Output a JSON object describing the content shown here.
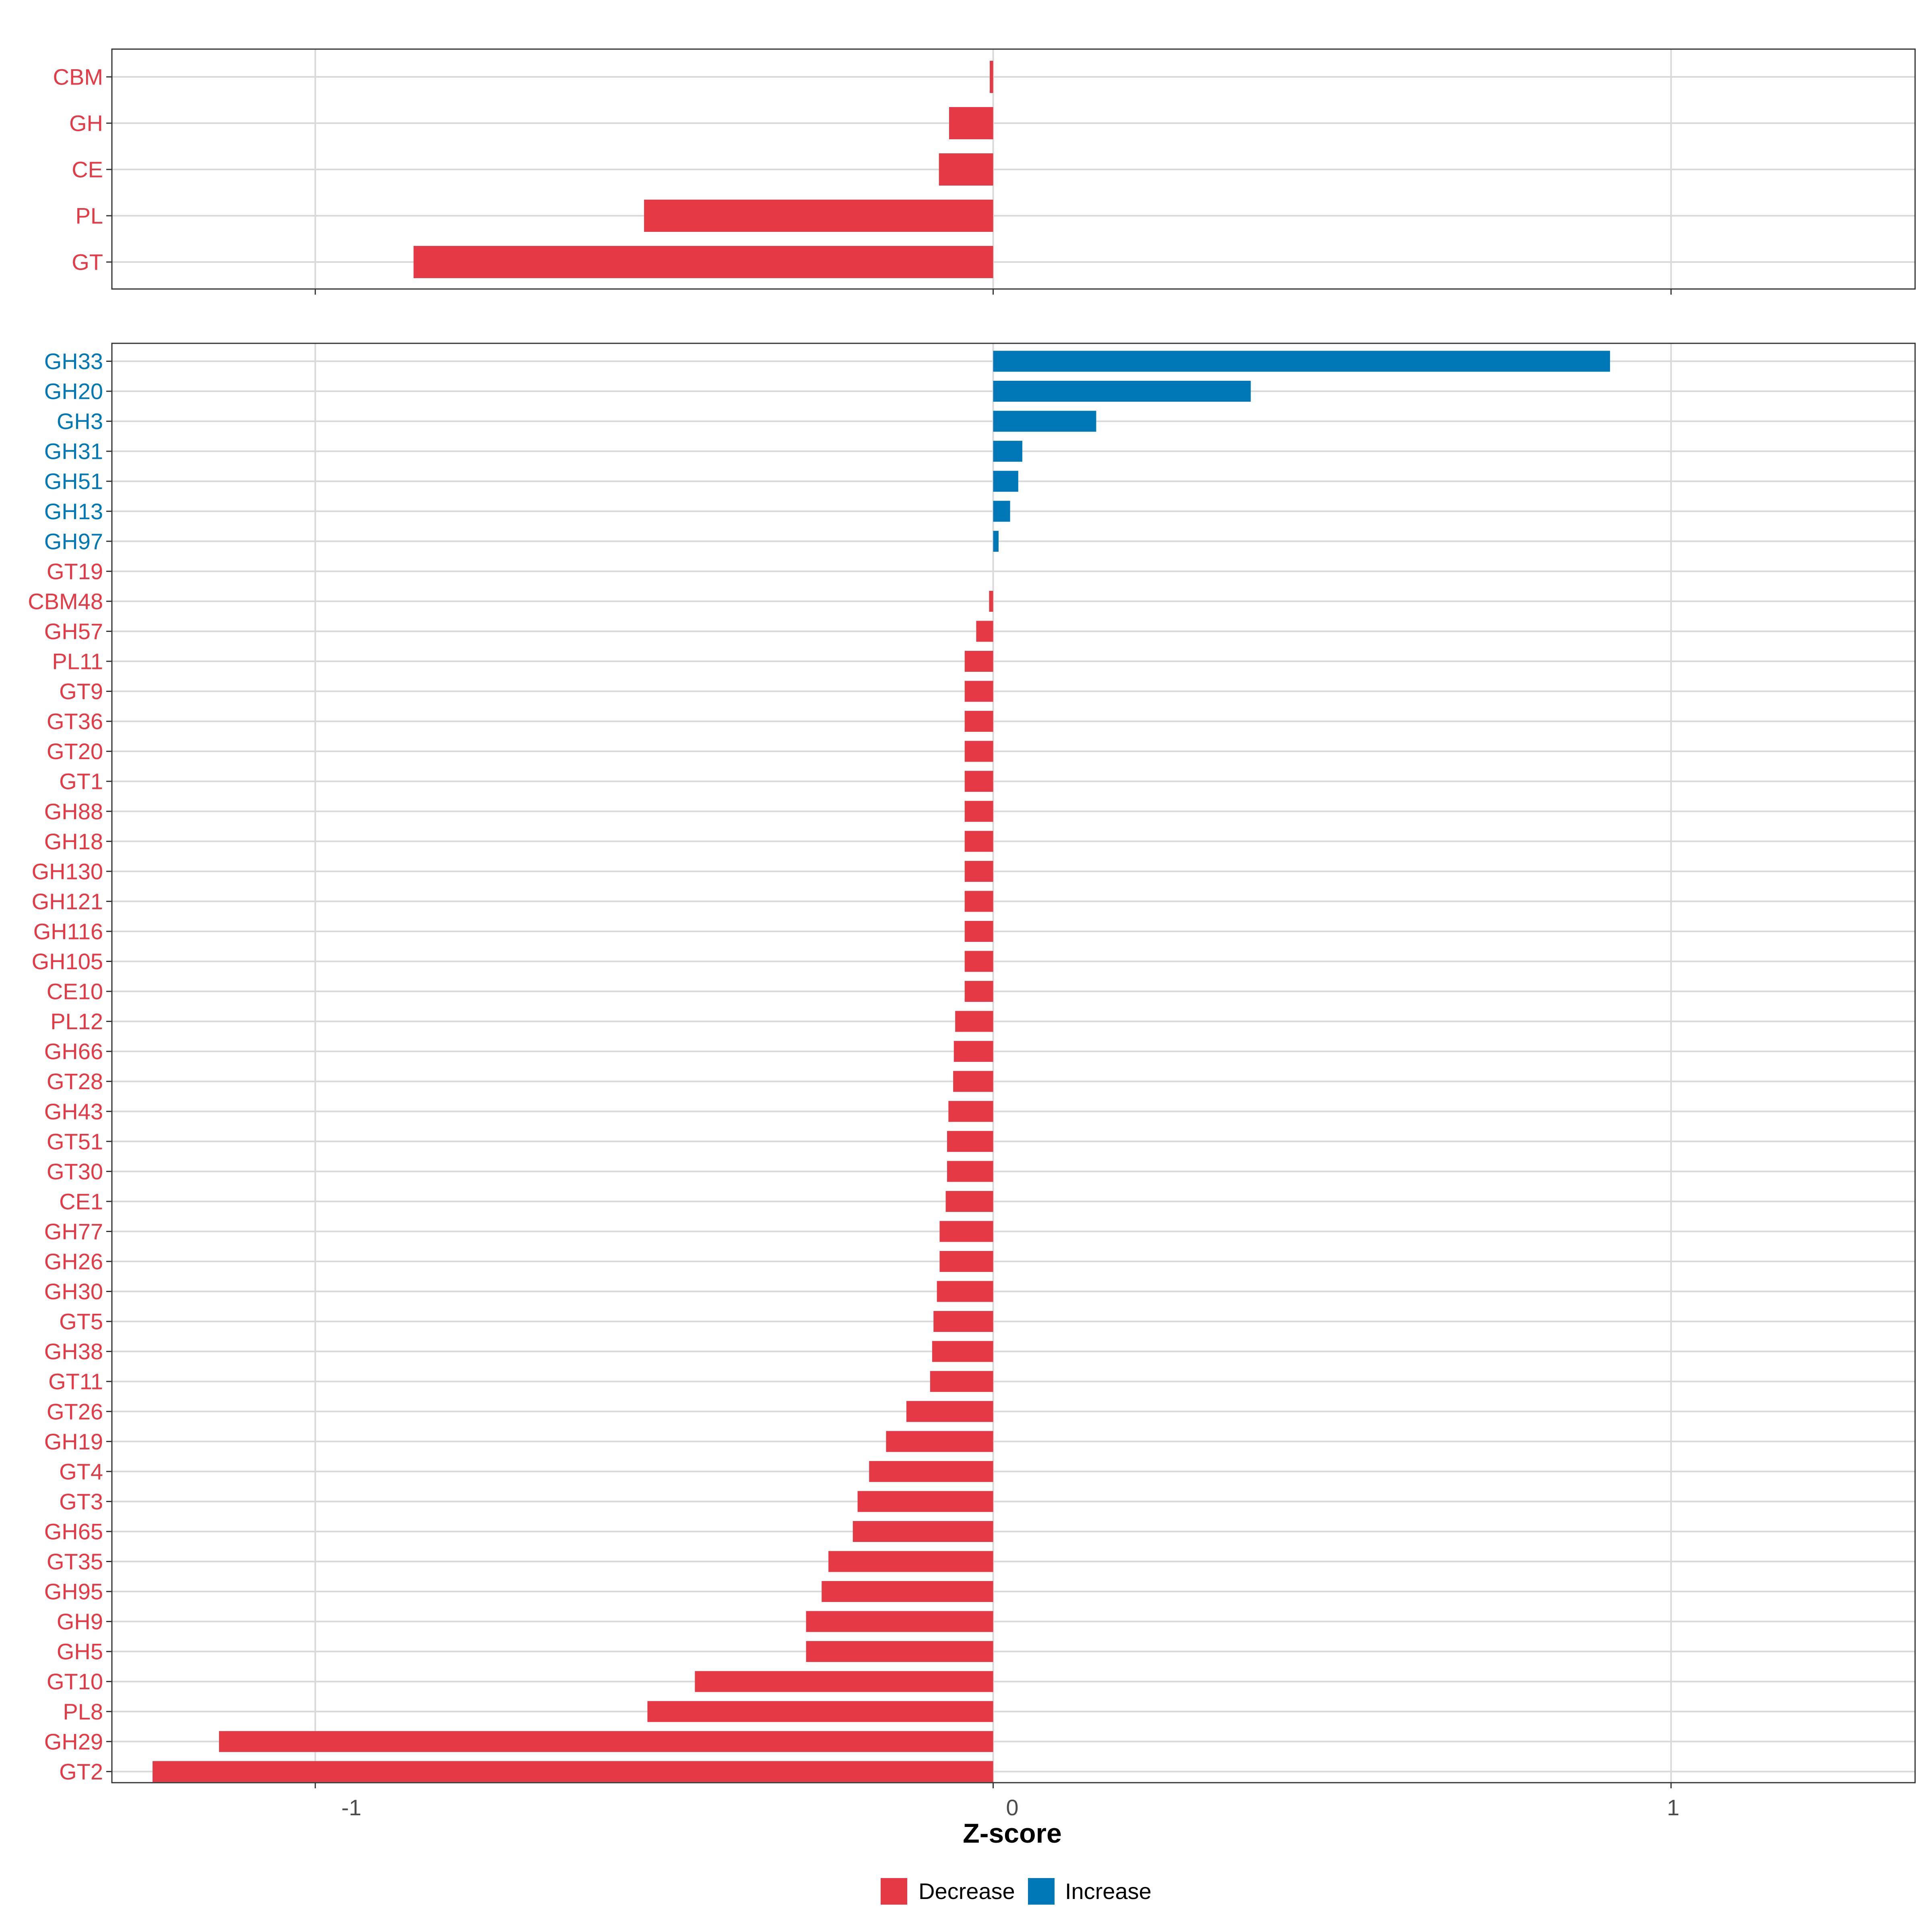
{
  "colors": {
    "decrease": "#e63946",
    "increase": "#0077b6"
  },
  "chart_data": [
    {
      "type": "bar",
      "orientation": "horizontal",
      "panel": "top",
      "categories": [
        "CBM",
        "GH",
        "CE",
        "PL",
        "GT"
      ],
      "values": [
        -0.005,
        -0.065,
        -0.08,
        -0.515,
        -0.855
      ],
      "direction": [
        "Decrease",
        "Decrease",
        "Decrease",
        "Decrease",
        "Decrease"
      ],
      "xlim": [
        -1.3,
        1.36
      ],
      "xticks": [
        -1,
        0,
        1
      ],
      "grid": true
    },
    {
      "type": "bar",
      "orientation": "horizontal",
      "panel": "bottom",
      "categories": [
        "GH33",
        "GH20",
        "GH3",
        "GH31",
        "GH51",
        "GH13",
        "GH97",
        "GT19",
        "CBM48",
        "GH57",
        "PL11",
        "GT9",
        "GT36",
        "GT20",
        "GT1",
        "GH88",
        "GH18",
        "GH130",
        "GH121",
        "GH116",
        "GH105",
        "CE10",
        "PL12",
        "GH66",
        "GT28",
        "GH43",
        "GT51",
        "GT30",
        "CE1",
        "GH77",
        "GH26",
        "GH30",
        "GT5",
        "GH38",
        "GT11",
        "GT26",
        "GH19",
        "GT4",
        "GT3",
        "GH65",
        "GT35",
        "GH95",
        "GH9",
        "GH5",
        "GT10",
        "PL8",
        "GH29",
        "GT2"
      ],
      "values": [
        0.91,
        0.38,
        0.152,
        0.043,
        0.037,
        0.025,
        0.008,
        0,
        -0.006,
        -0.025,
        -0.042,
        -0.042,
        -0.042,
        -0.042,
        -0.042,
        -0.042,
        -0.042,
        -0.042,
        -0.042,
        -0.042,
        -0.042,
        -0.042,
        -0.056,
        -0.058,
        -0.059,
        -0.066,
        -0.068,
        -0.068,
        -0.07,
        -0.079,
        -0.079,
        -0.083,
        -0.088,
        -0.09,
        -0.093,
        -0.128,
        -0.158,
        -0.183,
        -0.2,
        -0.207,
        -0.243,
        -0.253,
        -0.276,
        -0.276,
        -0.44,
        -0.51,
        -1.142,
        -1.24
      ],
      "direction": [
        "Increase",
        "Increase",
        "Increase",
        "Increase",
        "Increase",
        "Increase",
        "Increase",
        "Decrease",
        "Decrease",
        "Decrease",
        "Decrease",
        "Decrease",
        "Decrease",
        "Decrease",
        "Decrease",
        "Decrease",
        "Decrease",
        "Decrease",
        "Decrease",
        "Decrease",
        "Decrease",
        "Decrease",
        "Decrease",
        "Decrease",
        "Decrease",
        "Decrease",
        "Decrease",
        "Decrease",
        "Decrease",
        "Decrease",
        "Decrease",
        "Decrease",
        "Decrease",
        "Decrease",
        "Decrease",
        "Decrease",
        "Decrease",
        "Decrease",
        "Decrease",
        "Decrease",
        "Decrease",
        "Decrease",
        "Decrease",
        "Decrease",
        "Decrease",
        "Decrease",
        "Decrease",
        "Decrease"
      ],
      "xlim": [
        -1.3,
        1.36
      ],
      "xticks": [
        -1,
        0,
        1
      ],
      "xlabel": "Z-score",
      "grid": true
    }
  ],
  "x_axis": {
    "tick_labels": [
      "-1",
      "0",
      "1"
    ],
    "title": "Z-score"
  },
  "legend": {
    "position": "bottom",
    "items": [
      {
        "label": "Decrease",
        "key": "decrease"
      },
      {
        "label": "Increase",
        "key": "increase"
      }
    ]
  }
}
